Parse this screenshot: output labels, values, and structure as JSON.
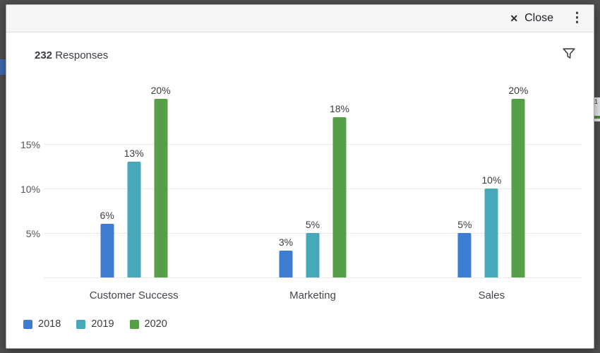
{
  "topbar": {
    "close_label": "Close",
    "icons": {
      "close": "✕",
      "menu": "⋮"
    }
  },
  "header": {
    "responses_count": "232",
    "responses_label": " Responses"
  },
  "background": {
    "fragment_label": "1"
  },
  "chart_data": {
    "type": "bar",
    "title": "232 Responses",
    "categories": [
      "Customer Success",
      "Marketing",
      "Sales"
    ],
    "series": [
      {
        "name": "2018",
        "color": "#3d7ed3",
        "values": [
          6,
          3,
          5
        ]
      },
      {
        "name": "2019",
        "color": "#47a8ba",
        "values": [
          13,
          5,
          10
        ]
      },
      {
        "name": "2020",
        "color": "#55a046",
        "values": [
          20,
          18,
          20
        ]
      }
    ],
    "value_suffix": "%",
    "yticks": [
      5,
      10,
      15
    ],
    "ylim": [
      0,
      20.5
    ],
    "grid": "dotted-horizontal",
    "legend_position": "bottom-left"
  }
}
